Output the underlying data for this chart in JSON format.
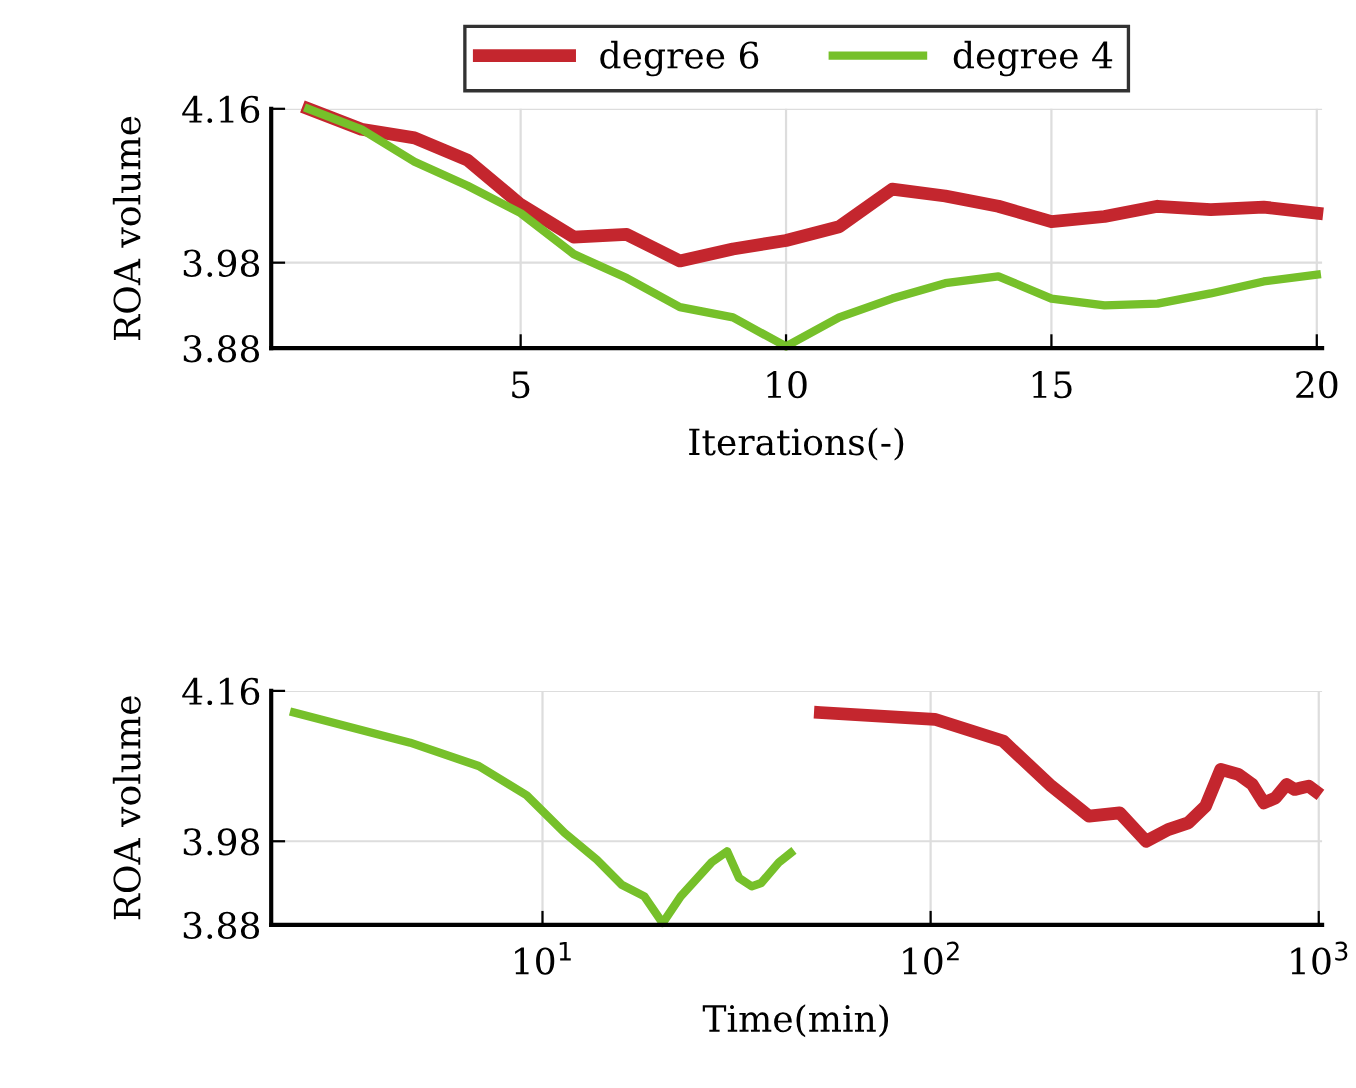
{
  "chart_data": [
    {
      "type": "line",
      "xlabel": "Iterations(-)",
      "ylabel": "ROA volume",
      "xlim": [
        0.3,
        20.1
      ],
      "ylim": [
        3.88,
        4.16
      ],
      "xticks": [
        5,
        10,
        15,
        20
      ],
      "yticks": [
        3.88,
        3.98,
        4.16
      ],
      "grid": true,
      "legend": "top",
      "x": [
        1,
        2,
        3,
        4,
        5,
        6,
        7,
        8,
        9,
        10,
        11,
        12,
        13,
        14,
        15,
        16,
        17,
        18,
        19,
        20
      ],
      "series": [
        {
          "name": "degree 6",
          "color": "#c4262e",
          "values": [
            4.16,
            4.136,
            4.126,
            4.1,
            4.048,
            4.01,
            4.013,
            3.982,
            3.996,
            4.006,
            4.022,
            4.066,
            4.058,
            4.046,
            4.028,
            4.034,
            4.046,
            4.042,
            4.045,
            4.038
          ]
        },
        {
          "name": "degree 4",
          "color": "#76c02a",
          "values": [
            4.16,
            4.136,
            4.098,
            4.07,
            4.038,
            3.99,
            3.962,
            3.928,
            3.916,
            3.882,
            3.916,
            3.938,
            3.956,
            3.964,
            3.938,
            3.93,
            3.932,
            3.944,
            3.958,
            3.966
          ]
        }
      ]
    },
    {
      "type": "line",
      "xlabel": "Time(min)",
      "ylabel": "ROA volume",
      "log": "x",
      "xlim": [
        2,
        1020
      ],
      "ylim": [
        3.88,
        4.16
      ],
      "xticks": [
        {
          "value": 10,
          "label": "10$^{1}$"
        },
        {
          "value": 100,
          "label": "10$^{2}$"
        },
        {
          "value": 1000,
          "label": "10$^{3}$"
        }
      ],
      "yticks": [
        3.88,
        3.98,
        4.16
      ],
      "grid": true,
      "series": [
        {
          "color": "#c4262e",
          "x": [
            52.0,
            102.5,
            153.8,
            204.6,
            256,
            307,
            359,
            409,
            461,
            511,
            559,
            621,
            674,
            722,
            774,
            826,
            867,
            903,
            942,
            980
          ],
          "values": [
            4.134,
            4.126,
            4.1,
            4.046,
            4.01,
            4.014,
            3.98,
            3.994,
            4.002,
            4.022,
            4.066,
            4.06,
            4.048,
            4.026,
            4.032,
            4.048,
            4.042,
            4.044,
            4.046,
            4.04
          ]
        },
        {
          "color": "#76c02a",
          "x": [
            2.29,
            4.56,
            6.85,
            9.1,
            11.4,
            13.8,
            16.0,
            18.3,
            20.4,
            22.7,
            27.3,
            29.9,
            32.1,
            34.6,
            36.6,
            40.7,
            43.6
          ],
          "values": [
            4.134,
            4.098,
            4.07,
            4.035,
            3.99,
            3.958,
            3.928,
            3.914,
            3.882,
            3.914,
            3.955,
            3.968,
            3.936,
            3.926,
            3.93,
            3.955,
            3.966
          ]
        }
      ]
    }
  ]
}
